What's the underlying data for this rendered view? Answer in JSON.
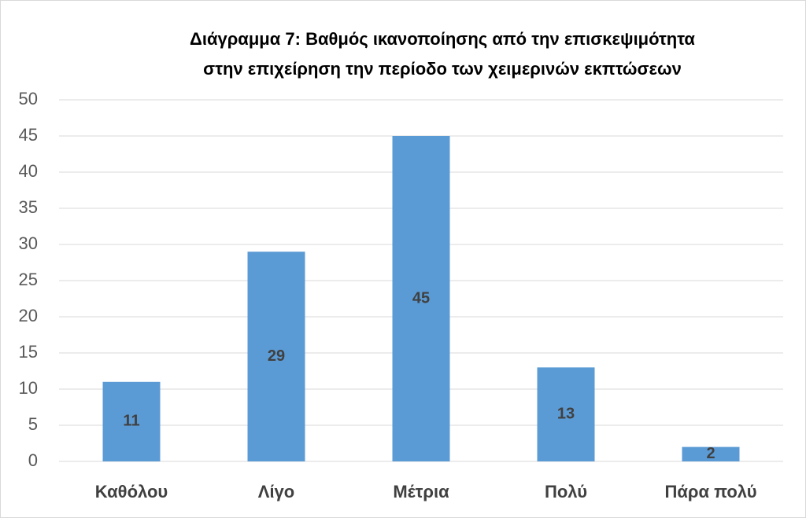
{
  "chart_data": {
    "type": "bar",
    "title": [
      "Διάγραμμα 7: Βαθμός ικανοποίησης από την επισκεψιμότητα",
      "στην επιχείρηση την περίοδο των χειμερινών εκπτώσεων"
    ],
    "categories": [
      "Καθόλου",
      "Λίγο",
      "Μέτρια",
      "Πολύ",
      "Πάρα πολύ"
    ],
    "values": [
      11,
      29,
      45,
      13,
      2
    ],
    "color": "#5b9bd5",
    "ylim": [
      0,
      50
    ],
    "yticks": [
      0,
      5,
      10,
      15,
      20,
      25,
      30,
      35,
      40,
      45,
      50
    ],
    "grid": true
  }
}
